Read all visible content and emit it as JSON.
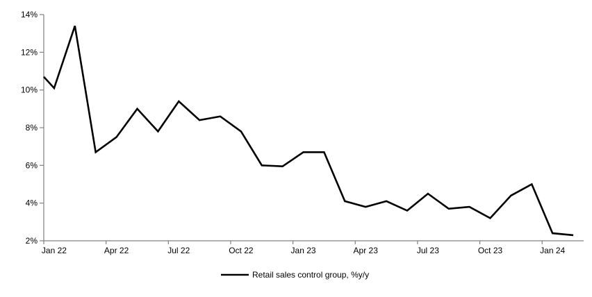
{
  "chart_data": {
    "type": "line",
    "title": "",
    "x": [
      "Jan 22",
      "Feb 22",
      "Mar 22",
      "Apr 22",
      "May 22",
      "Jun 22",
      "Jul 22",
      "Aug 22",
      "Sep 22",
      "Oct 22",
      "Nov 22",
      "Dec 22",
      "Jan 23",
      "Feb 23",
      "Mar 23",
      "Apr 23",
      "May 23",
      "Jun 23",
      "Jul 23",
      "Aug 23",
      "Sep 23",
      "Oct 23",
      "Nov 23",
      "Dec 23",
      "Jan 24",
      "Feb 24"
    ],
    "series": [
      {
        "name": "Retail sales control group, %y/y",
        "color": "#000000",
        "values": [
          10.1,
          13.4,
          6.7,
          7.5,
          9.0,
          7.8,
          9.4,
          8.4,
          8.6,
          7.8,
          6.0,
          5.95,
          6.7,
          6.7,
          4.1,
          3.8,
          4.1,
          3.6,
          4.5,
          3.7,
          3.8,
          3.2,
          4.4,
          5.0,
          2.4,
          2.3
        ]
      }
    ],
    "lead_in_value_at_axis": 10.7,
    "ylim": [
      2,
      14
    ],
    "ytick_step": 2,
    "yticks": [
      "2%",
      "4%",
      "6%",
      "8%",
      "10%",
      "12%",
      "14%"
    ],
    "xticks": [
      "Jan 22",
      "Apr 22",
      "Jul 22",
      "Oct 22",
      "Jan 23",
      "Apr 23",
      "Jul 23",
      "Oct 23",
      "Jan 24"
    ],
    "xtick_interval_months": 3,
    "grid": false,
    "legend_position": "bottom-center",
    "axis_color": "#808080",
    "text_color": "#000000",
    "background_color": "#ffffff",
    "line_width": 2.6
  }
}
